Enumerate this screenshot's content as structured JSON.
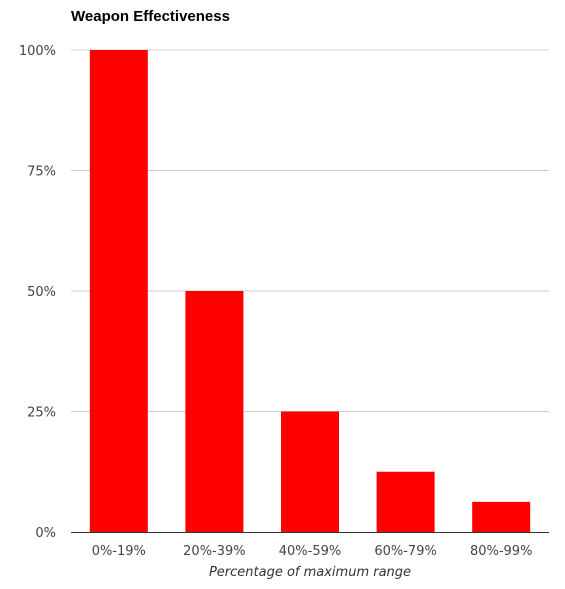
{
  "chart_data": {
    "type": "bar",
    "title": "Weapon Effectiveness",
    "xlabel": "Percentage of maximum range",
    "ylabel": "",
    "categories": [
      "0%-19%",
      "20%-39%",
      "40%-59%",
      "60%-79%",
      "80%-99%"
    ],
    "values": [
      100,
      50,
      25,
      12.5,
      6.25
    ],
    "ylim": [
      0,
      100
    ],
    "yticks": [
      0,
      25,
      50,
      75,
      100
    ],
    "ytick_labels": [
      "0%",
      "25%",
      "50%",
      "75%",
      "100%"
    ],
    "grid": true,
    "bar_color": "#ff0000",
    "grid_color": "#cccccc"
  }
}
